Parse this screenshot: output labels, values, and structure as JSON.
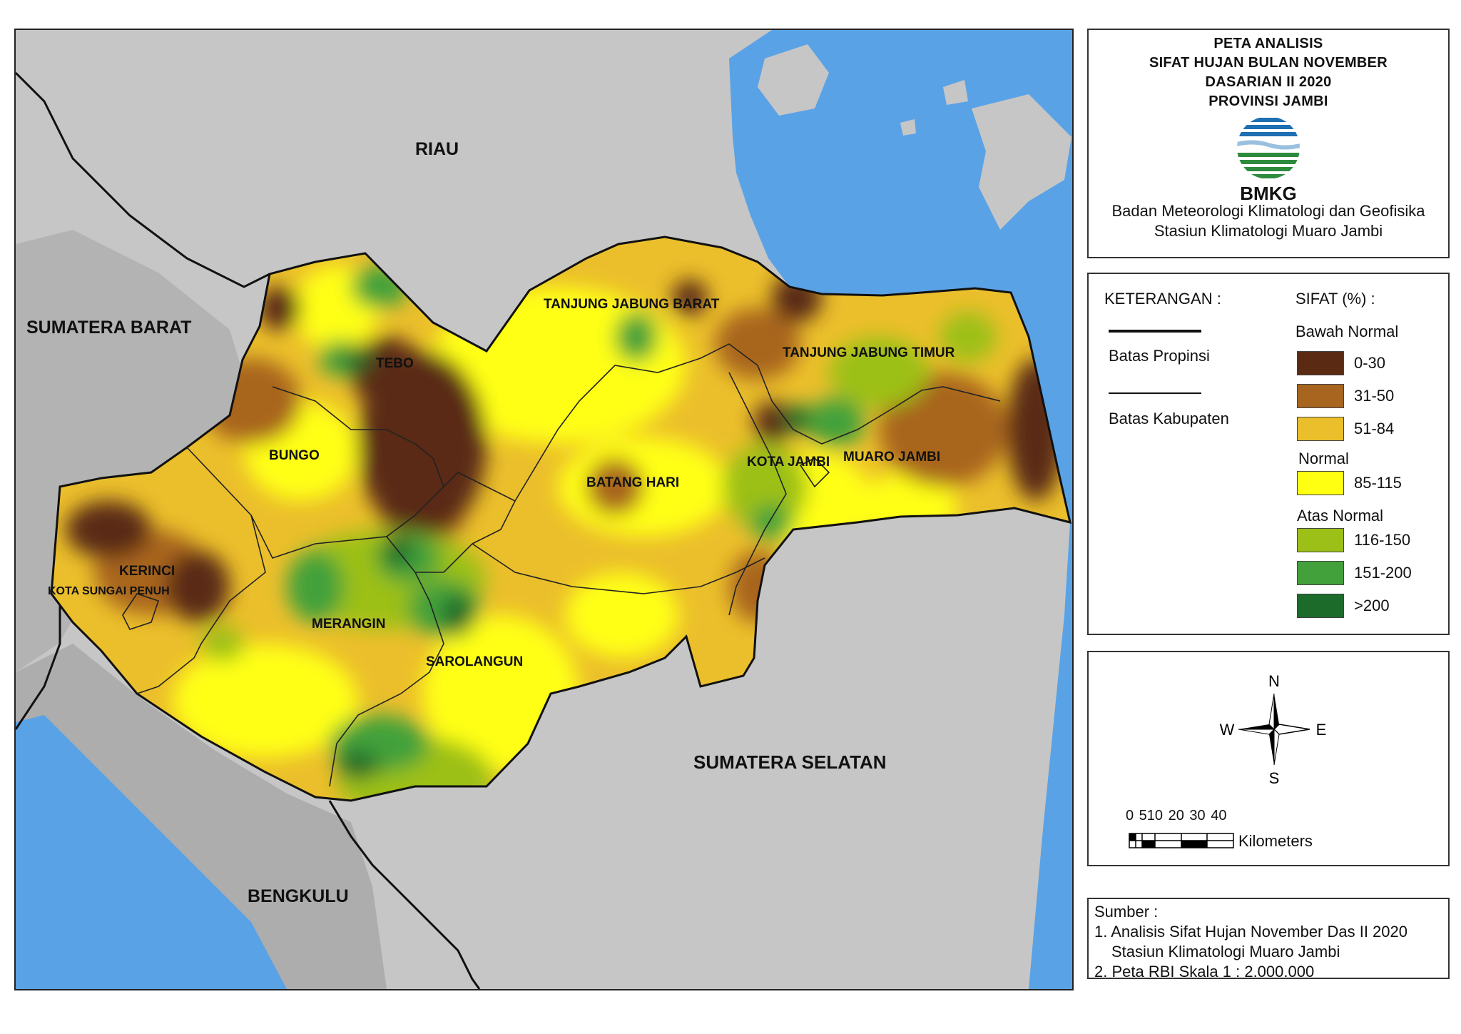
{
  "map": {
    "regions_outside": [
      {
        "name": "RIAU"
      },
      {
        "name": "SUMATERA BARAT"
      },
      {
        "name": "SUMATERA SELATAN"
      },
      {
        "name": "BENGKULU"
      }
    ],
    "districts": [
      {
        "name": "TANJUNG JABUNG BARAT"
      },
      {
        "name": "TANJUNG JABUNG TIMUR"
      },
      {
        "name": "TEBO"
      },
      {
        "name": "BUNGO"
      },
      {
        "name": "BATANG HARI"
      },
      {
        "name": "KOTA JAMBI"
      },
      {
        "name": "MUARO JAMBI"
      },
      {
        "name": "KERINCI"
      },
      {
        "name": "KOTA SUNGAI PENUH"
      },
      {
        "name": "MERANGIN"
      },
      {
        "name": "SAROLANGUN"
      }
    ],
    "colors": {
      "sea": "#5aa2e6",
      "land": "#c6c6c6",
      "class_0_30": "#5a2a12",
      "class_31_50": "#a8651f",
      "class_51_84": "#ebbf2c",
      "class_85_115": "#ffff12",
      "class_116_150": "#9cc018",
      "class_151_200": "#43a13b",
      "class_200": "#1c6b2b"
    }
  },
  "title": {
    "lines": [
      "PETA ANALISIS",
      "SIFAT HUJAN BULAN NOVEMBER",
      "DASARIAN II 2020",
      "PROVINSI JAMBI"
    ],
    "logo_text": "BMKG",
    "agency_line1": "Badan Meteorologi Klimatologi dan Geofisika",
    "agency_line2": "Stasiun Klimatologi Muaro Jambi"
  },
  "legend": {
    "heading": "KETERANGAN :",
    "line_items": [
      {
        "label": "Batas Propinsi"
      },
      {
        "label": "Batas Kabupaten"
      }
    ],
    "sifat_heading": "SIFAT (%) :",
    "groups": [
      {
        "name": "Bawah Normal",
        "classes": [
          {
            "label": "0-30",
            "color": "#5a2a12"
          },
          {
            "label": "31-50",
            "color": "#a8651f"
          },
          {
            "label": "51-84",
            "color": "#ebbf2c"
          }
        ]
      },
      {
        "name": "Normal",
        "classes": [
          {
            "label": "85-115",
            "color": "#ffff12"
          }
        ]
      },
      {
        "name": "Atas Normal",
        "classes": [
          {
            "label": "116-150",
            "color": "#9cc018"
          },
          {
            "label": "151-200",
            "color": "#43a13b"
          },
          {
            "label": ">200",
            "color": "#1c6b2b"
          }
        ]
      }
    ]
  },
  "compass": {
    "n": "N",
    "s": "S",
    "e": "E",
    "w": "W"
  },
  "scale": {
    "ticks": "0 510 20 30 40",
    "unit": "Kilometers"
  },
  "source": {
    "heading": "Sumber :",
    "line1": "1. Analisis Sifat Hujan November Das II  2020",
    "line2": "Stasiun Klimatologi Muaro Jambi",
    "line3": "2. Peta RBI Skala 1 : 2.000.000"
  }
}
